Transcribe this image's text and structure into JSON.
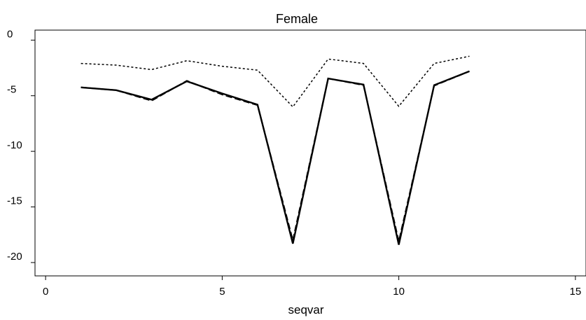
{
  "chart_data": {
    "type": "line",
    "title": "Female",
    "xlabel": "seqvar",
    "ylabel": "",
    "xlim": [
      -0.3,
      15.3
    ],
    "ylim": [
      -21.2,
      0.9
    ],
    "xticks": [
      0,
      5,
      10,
      15
    ],
    "yticks": [
      0,
      -5,
      -10,
      -15,
      -20
    ],
    "x": [
      1,
      2,
      3,
      4,
      5,
      6,
      7,
      8,
      9,
      10,
      11,
      12
    ],
    "series": [
      {
        "style": "solid",
        "color": "#000000",
        "values": [
          -4.25,
          -4.5,
          -5.35,
          -3.7,
          -4.8,
          -5.8,
          -18.3,
          -3.45,
          -4.0,
          -18.4,
          -4.05,
          -2.8
        ]
      },
      {
        "style": "dashed",
        "color": "#000000",
        "values": [
          -4.25,
          -4.5,
          -5.45,
          -3.65,
          -4.9,
          -5.85,
          -18.0,
          -3.45,
          -4.05,
          -18.1,
          -4.1,
          -2.8
        ]
      },
      {
        "style": "dotted",
        "color": "#000000",
        "values": [
          -2.1,
          -2.25,
          -2.65,
          -1.85,
          -2.35,
          -2.7,
          -6.0,
          -1.7,
          -2.1,
          -5.95,
          -2.1,
          -1.45
        ]
      }
    ]
  }
}
